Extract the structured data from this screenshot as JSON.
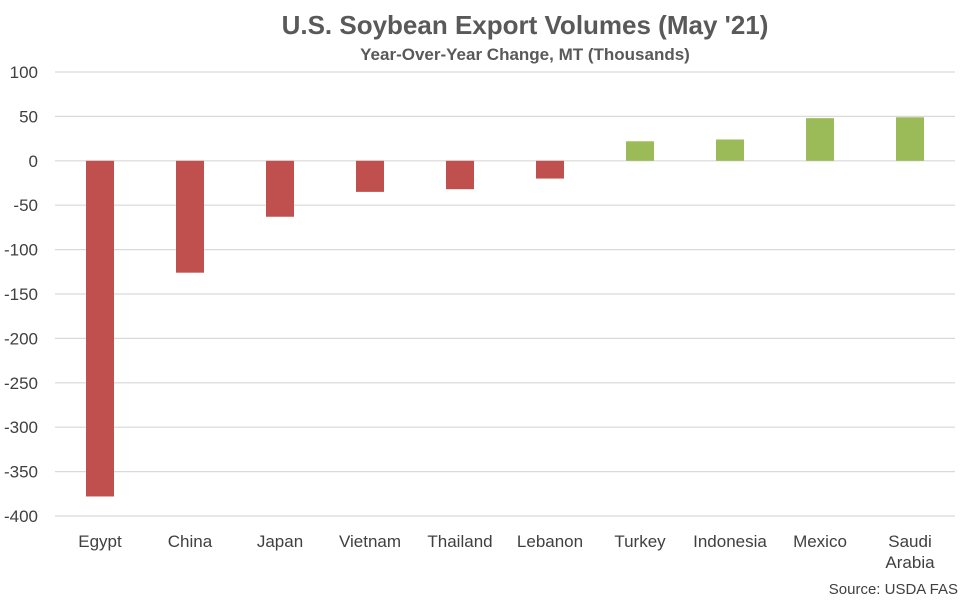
{
  "chart_data": {
    "type": "bar",
    "title": "U.S. Soybean Export Volumes (May '21)",
    "subtitle": "Year-Over-Year Change, MT (Thousands)",
    "categories": [
      [
        "Egypt"
      ],
      [
        "China"
      ],
      [
        "Japan"
      ],
      [
        "Vietnam"
      ],
      [
        "Thailand"
      ],
      [
        "Lebanon"
      ],
      [
        "Turkey"
      ],
      [
        "Indonesia"
      ],
      [
        "Mexico"
      ],
      [
        "Saudi",
        "Arabia"
      ]
    ],
    "values": [
      -378,
      -126,
      -63,
      -35,
      -32,
      -20,
      22,
      24,
      48,
      49
    ],
    "ylim": [
      -400,
      100
    ],
    "yticks": [
      100,
      50,
      0,
      -50,
      -100,
      -150,
      -200,
      -250,
      -300,
      -350,
      -400
    ],
    "grid": true,
    "colors": {
      "negative": "#c0504d",
      "positive": "#9bbb59"
    },
    "source": "Source: USDA FAS"
  }
}
